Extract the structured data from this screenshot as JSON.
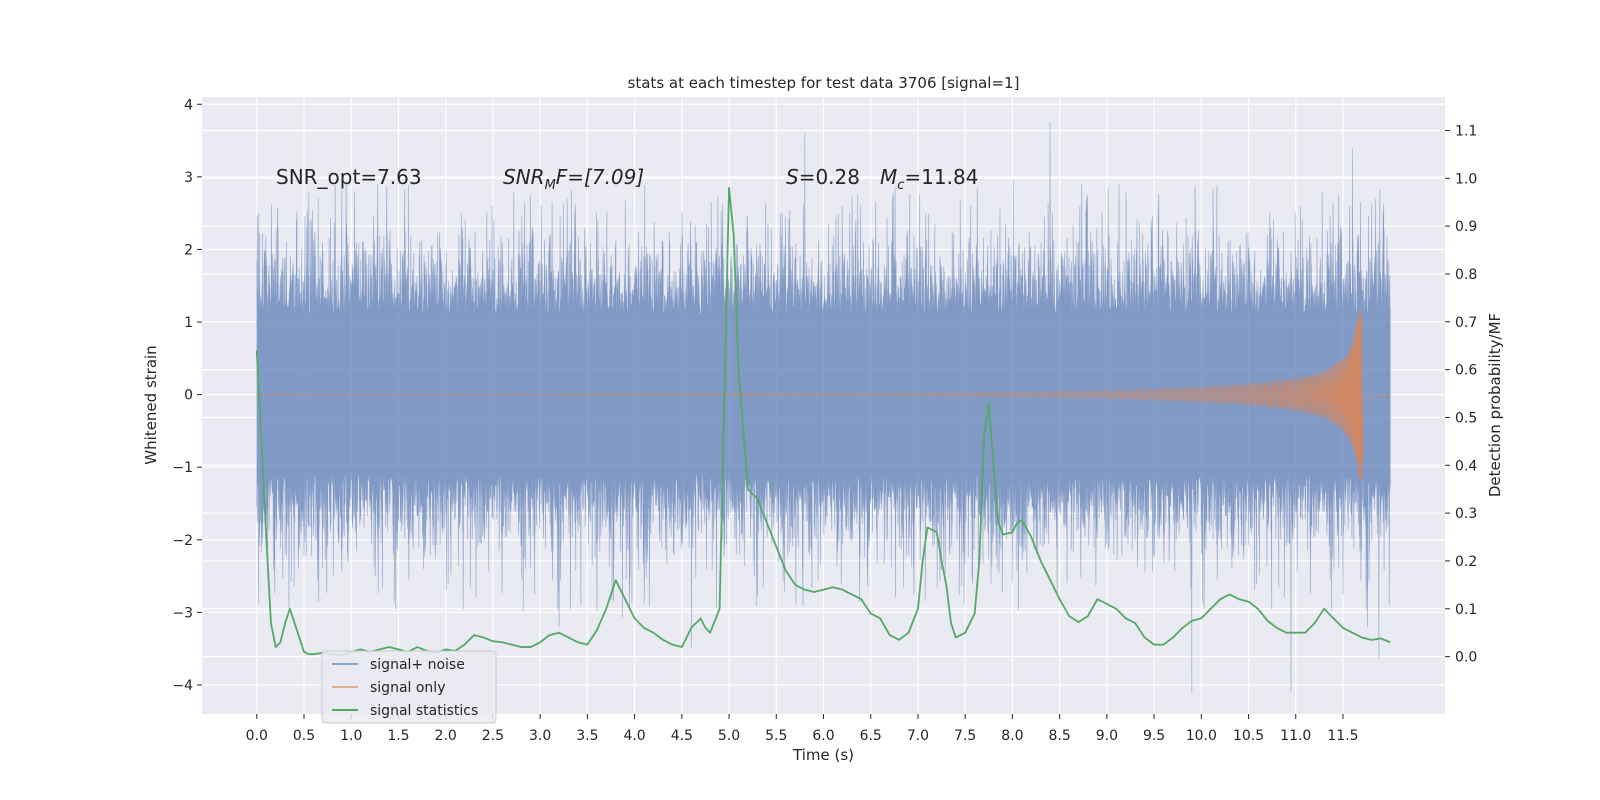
{
  "chart_data": {
    "type": "line",
    "title": "stats at each timestep for test data 3706 [signal=1]",
    "xlabel": "Time (s)",
    "ylabel": "Whitened strain",
    "ylabel_right": "Detection probability/MF",
    "xlim": [
      -0.58,
      12.58
    ],
    "ylim": [
      -4.4,
      4.1
    ],
    "ylim_right": [
      -0.12,
      1.17
    ],
    "x_ticks": [
      "0.0",
      "0.5",
      "1.0",
      "1.5",
      "2.0",
      "2.5",
      "3.0",
      "3.5",
      "4.0",
      "4.5",
      "5.0",
      "5.5",
      "6.0",
      "6.5",
      "7.0",
      "7.5",
      "8.0",
      "8.5",
      "9.0",
      "9.5",
      "10.0",
      "10.5",
      "11.0",
      "11.5"
    ],
    "y_ticks": [
      4,
      3,
      2,
      1,
      0,
      -1,
      -2,
      -3,
      -4
    ],
    "y_tick_labels": [
      "4",
      "3",
      "2",
      "1",
      "0",
      "−1",
      "−2",
      "−3",
      "−4"
    ],
    "y_ticks_right": [
      1.1,
      1.0,
      0.9,
      0.8,
      0.7,
      0.6,
      0.5,
      0.4,
      0.3,
      0.2,
      0.1,
      0.0
    ],
    "y_tick_labels_right": [
      "1.1",
      "1.0",
      "0.9",
      "0.8",
      "0.7",
      "0.6",
      "0.5",
      "0.4",
      "0.3",
      "0.2",
      "0.1",
      "0.0"
    ],
    "grid": true,
    "legend_position": "lower-left",
    "annotations": {
      "snr_opt": "SNR_opt=7.63",
      "snr_mf_main": "SNR",
      "snr_mf_sub": "M",
      "snr_mf_rest": "F=[7.09]",
      "s_var": "S",
      "s_val": "=0.28",
      "mc_var": "M",
      "mc_sub": "c",
      "mc_val": "=11.84"
    },
    "colors": {
      "background": "#eaeaf2",
      "grid": "#ffffff",
      "noise": "#4c72b0",
      "signal": "#dd8452",
      "stats": "#55a868"
    },
    "series": [
      {
        "name": "signal+ noise",
        "kind": "strain",
        "x_range": [
          0.0,
          12.0
        ],
        "core_amplitude": 1.1,
        "typical_peak_range": [
          1.5,
          3.0
        ],
        "max": 3.75,
        "min": -4.1
      },
      {
        "name": "signal only",
        "kind": "chirp",
        "merger_time": 11.7,
        "envelope": [
          [
            0.0,
            0.0
          ],
          [
            7.0,
            0.02
          ],
          [
            8.0,
            0.03
          ],
          [
            9.0,
            0.05
          ],
          [
            10.0,
            0.1
          ],
          [
            10.5,
            0.14
          ],
          [
            11.0,
            0.22
          ],
          [
            11.3,
            0.32
          ],
          [
            11.5,
            0.5
          ],
          [
            11.6,
            0.7
          ],
          [
            11.67,
            1.15
          ],
          [
            11.7,
            1.2
          ],
          [
            11.72,
            0.3
          ],
          [
            11.76,
            0.05
          ],
          [
            12.0,
            0.0
          ]
        ]
      },
      {
        "name": "signal statistics",
        "kind": "line",
        "axis": "right",
        "points": [
          [
            0.0,
            0.64
          ],
          [
            0.05,
            0.45
          ],
          [
            0.1,
            0.25
          ],
          [
            0.15,
            0.07
          ],
          [
            0.2,
            0.02
          ],
          [
            0.25,
            0.03
          ],
          [
            0.3,
            0.07
          ],
          [
            0.35,
            0.1
          ],
          [
            0.4,
            0.07
          ],
          [
            0.45,
            0.04
          ],
          [
            0.5,
            0.01
          ],
          [
            0.55,
            0.005
          ],
          [
            0.6,
            0.005
          ],
          [
            0.7,
            0.008
          ],
          [
            0.8,
            0.005
          ],
          [
            0.9,
            0.003
          ],
          [
            1.0,
            0.01
          ],
          [
            1.1,
            0.015
          ],
          [
            1.2,
            0.01
          ],
          [
            1.3,
            0.015
          ],
          [
            1.4,
            0.02
          ],
          [
            1.5,
            0.015
          ],
          [
            1.6,
            0.01
          ],
          [
            1.7,
            0.02
          ],
          [
            1.8,
            0.012
          ],
          [
            1.9,
            0.008
          ],
          [
            2.0,
            0.015
          ],
          [
            2.1,
            0.012
          ],
          [
            2.2,
            0.025
          ],
          [
            2.3,
            0.045
          ],
          [
            2.4,
            0.04
          ],
          [
            2.5,
            0.032
          ],
          [
            2.6,
            0.03
          ],
          [
            2.7,
            0.025
          ],
          [
            2.8,
            0.02
          ],
          [
            2.9,
            0.02
          ],
          [
            3.0,
            0.03
          ],
          [
            3.1,
            0.045
          ],
          [
            3.2,
            0.05
          ],
          [
            3.3,
            0.04
          ],
          [
            3.4,
            0.03
          ],
          [
            3.5,
            0.025
          ],
          [
            3.6,
            0.055
          ],
          [
            3.7,
            0.1
          ],
          [
            3.8,
            0.16
          ],
          [
            3.9,
            0.12
          ],
          [
            4.0,
            0.08
          ],
          [
            4.1,
            0.06
          ],
          [
            4.2,
            0.05
          ],
          [
            4.3,
            0.035
          ],
          [
            4.4,
            0.025
          ],
          [
            4.5,
            0.02
          ],
          [
            4.55,
            0.04
          ],
          [
            4.6,
            0.06
          ],
          [
            4.7,
            0.08
          ],
          [
            4.75,
            0.06
          ],
          [
            4.8,
            0.05
          ],
          [
            4.9,
            0.1
          ],
          [
            5.0,
            0.98
          ],
          [
            5.05,
            0.88
          ],
          [
            5.1,
            0.6
          ],
          [
            5.2,
            0.35
          ],
          [
            5.3,
            0.33
          ],
          [
            5.4,
            0.28
          ],
          [
            5.5,
            0.23
          ],
          [
            5.6,
            0.18
          ],
          [
            5.7,
            0.15
          ],
          [
            5.8,
            0.14
          ],
          [
            5.9,
            0.135
          ],
          [
            6.0,
            0.14
          ],
          [
            6.1,
            0.145
          ],
          [
            6.2,
            0.14
          ],
          [
            6.3,
            0.13
          ],
          [
            6.4,
            0.12
          ],
          [
            6.5,
            0.09
          ],
          [
            6.6,
            0.08
          ],
          [
            6.7,
            0.045
          ],
          [
            6.8,
            0.035
          ],
          [
            6.9,
            0.05
          ],
          [
            7.0,
            0.1
          ],
          [
            7.05,
            0.2
          ],
          [
            7.1,
            0.27
          ],
          [
            7.2,
            0.26
          ],
          [
            7.25,
            0.2
          ],
          [
            7.3,
            0.15
          ],
          [
            7.35,
            0.07
          ],
          [
            7.4,
            0.04
          ],
          [
            7.5,
            0.05
          ],
          [
            7.6,
            0.09
          ],
          [
            7.65,
            0.2
          ],
          [
            7.7,
            0.46
          ],
          [
            7.75,
            0.53
          ],
          [
            7.8,
            0.4
          ],
          [
            7.85,
            0.28
          ],
          [
            7.9,
            0.255
          ],
          [
            8.0,
            0.26
          ],
          [
            8.05,
            0.28
          ],
          [
            8.1,
            0.285
          ],
          [
            8.2,
            0.25
          ],
          [
            8.3,
            0.2
          ],
          [
            8.4,
            0.16
          ],
          [
            8.5,
            0.12
          ],
          [
            8.6,
            0.085
          ],
          [
            8.7,
            0.072
          ],
          [
            8.8,
            0.085
          ],
          [
            8.9,
            0.12
          ],
          [
            9.0,
            0.11
          ],
          [
            9.1,
            0.1
          ],
          [
            9.2,
            0.08
          ],
          [
            9.3,
            0.07
          ],
          [
            9.4,
            0.04
          ],
          [
            9.5,
            0.025
          ],
          [
            9.6,
            0.025
          ],
          [
            9.7,
            0.04
          ],
          [
            9.8,
            0.06
          ],
          [
            9.9,
            0.075
          ],
          [
            10.0,
            0.08
          ],
          [
            10.1,
            0.1
          ],
          [
            10.2,
            0.12
          ],
          [
            10.3,
            0.13
          ],
          [
            10.4,
            0.12
          ],
          [
            10.5,
            0.115
          ],
          [
            10.6,
            0.1
          ],
          [
            10.7,
            0.075
          ],
          [
            10.8,
            0.06
          ],
          [
            10.9,
            0.05
          ],
          [
            11.0,
            0.05
          ],
          [
            11.1,
            0.05
          ],
          [
            11.2,
            0.07
          ],
          [
            11.3,
            0.1
          ],
          [
            11.4,
            0.08
          ],
          [
            11.5,
            0.06
          ],
          [
            11.6,
            0.05
          ],
          [
            11.7,
            0.04
          ],
          [
            11.8,
            0.035
          ],
          [
            11.9,
            0.038
          ],
          [
            12.0,
            0.03
          ]
        ]
      }
    ]
  },
  "legend": {
    "items": [
      {
        "label": "signal+ noise"
      },
      {
        "label": "signal only"
      },
      {
        "label": "signal statistics"
      }
    ]
  }
}
